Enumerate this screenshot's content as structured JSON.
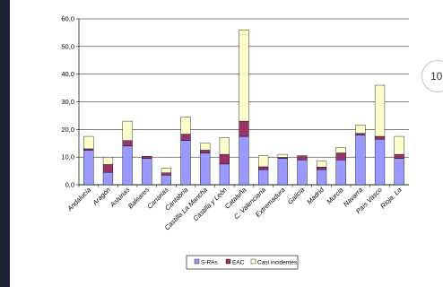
{
  "page_number": "10",
  "chart_data": {
    "type": "bar",
    "stacked": true,
    "categories": [
      "Andalucía",
      "Aragón",
      "Asturias",
      "Baleares",
      "Canarias",
      "Cantabria",
      "Castilla La Mancha",
      "Castilla y León",
      "Cataluña",
      "C. Valenciana",
      "Extremadura",
      "Galicia",
      "Madrid",
      "Murcia",
      "Navarra",
      "País Vasco",
      "Rioja, La"
    ],
    "series": [
      {
        "name": "S-RAs",
        "color": "#9999ff",
        "values": [
          12.5,
          4.5,
          14.0,
          9.5,
          3.5,
          16.0,
          11.5,
          7.5,
          17.5,
          5.5,
          9.5,
          9.0,
          5.5,
          9.0,
          18.0,
          16.5,
          9.5
        ]
      },
      {
        "name": "EAC",
        "color": "#993366",
        "values": [
          0.5,
          2.8,
          2.0,
          0.8,
          0.8,
          2.3,
          1.0,
          3.5,
          5.5,
          1.0,
          0.4,
          1.5,
          0.9,
          2.5,
          0.6,
          1.0,
          1.5
        ]
      },
      {
        "name": "Casi incidentes",
        "color": "#ffffcc",
        "values": [
          4.5,
          2.7,
          7.0,
          0.0,
          1.7,
          6.2,
          2.5,
          6.0,
          33.0,
          4.0,
          1.1,
          0.0,
          2.1,
          2.0,
          3.0,
          18.5,
          6.5
        ]
      }
    ],
    "yticks": [
      "0,0",
      "10,0",
      "20,0",
      "30,0",
      "40,0",
      "50,0",
      "60,0"
    ],
    "ylim": [
      0,
      60
    ],
    "grid": true,
    "legend_position": "bottom"
  }
}
